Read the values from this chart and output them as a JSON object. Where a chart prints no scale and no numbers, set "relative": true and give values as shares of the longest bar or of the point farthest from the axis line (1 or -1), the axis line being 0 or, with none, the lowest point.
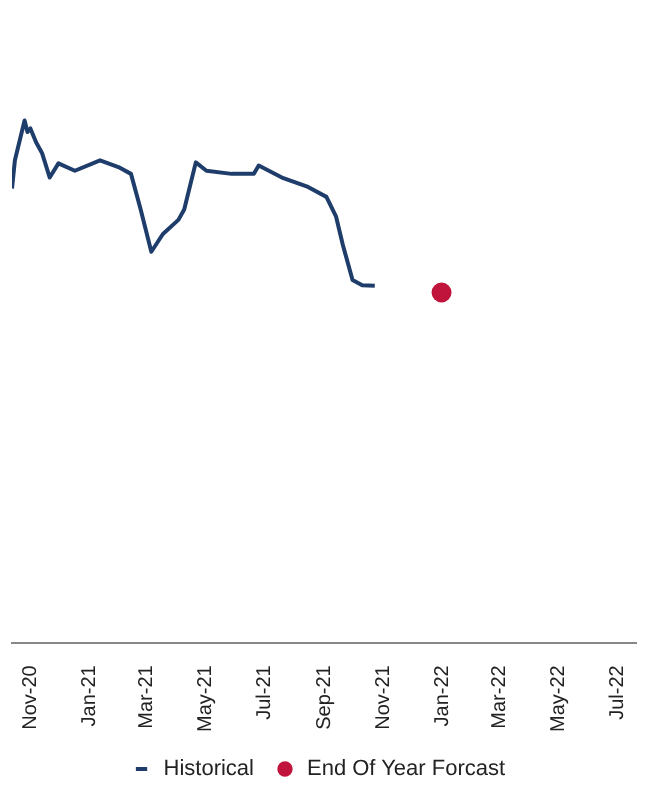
{
  "chart_data": {
    "type": "line",
    "relative": true,
    "legend": "bottom",
    "grid": false,
    "xlim": [
      "2020-10-13",
      "2022-07-20"
    ],
    "xticks": [
      {
        "value": "2020-11-01",
        "label": "Nov-20"
      },
      {
        "value": "2021-01-01",
        "label": "Jan-21"
      },
      {
        "value": "2021-03-01",
        "label": "Mar-21"
      },
      {
        "value": "2021-05-01",
        "label": "May-21"
      },
      {
        "value": "2021-07-01",
        "label": "Jul-21"
      },
      {
        "value": "2021-09-01",
        "label": "Sep-21"
      },
      {
        "value": "2021-11-01",
        "label": "Nov-21"
      },
      {
        "value": "2022-01-01",
        "label": "Jan-22"
      },
      {
        "value": "2022-03-01",
        "label": "Mar-22"
      },
      {
        "value": "2022-05-01",
        "label": "May-22"
      },
      {
        "value": "2022-07-01",
        "label": "Jul-22"
      }
    ],
    "series": [
      {
        "name": "Historical",
        "type": "line",
        "marker": "none",
        "color": "#1f3d6b",
        "x": [
          "2020-10-13",
          "2020-10-16",
          "2020-10-26",
          "2020-10-29",
          "2020-11-01",
          "2020-11-07",
          "2020-11-13",
          "2020-11-21",
          "2020-11-30",
          "2020-12-17",
          "2021-01-12",
          "2021-01-31",
          "2021-02-13",
          "2021-02-23",
          "2021-03-06",
          "2021-03-18",
          "2021-04-03",
          "2021-04-09",
          "2021-04-21",
          "2021-05-02",
          "2021-05-28",
          "2021-06-20",
          "2021-06-25",
          "2021-07-19",
          "2021-08-15",
          "2021-09-03",
          "2021-09-13",
          "2021-09-20",
          "2021-09-30",
          "2021-10-10",
          "2021-10-23"
        ],
        "values": [
          0.87,
          0.924,
          1,
          0.978,
          0.985,
          0.958,
          0.938,
          0.891,
          0.918,
          0.904,
          0.924,
          0.911,
          0.898,
          0.83,
          0.749,
          0.783,
          0.81,
          0.83,
          0.92,
          0.904,
          0.898,
          0.898,
          0.914,
          0.891,
          0.873,
          0.854,
          0.816,
          0.762,
          0.695,
          0.685,
          0.684
        ]
      },
      {
        "name": "End Of Year Forcast",
        "type": "scatter",
        "marker": "circle",
        "color": "#c0143c",
        "x": [
          "2021-12-31"
        ],
        "values": [
          0.671
        ]
      }
    ]
  }
}
